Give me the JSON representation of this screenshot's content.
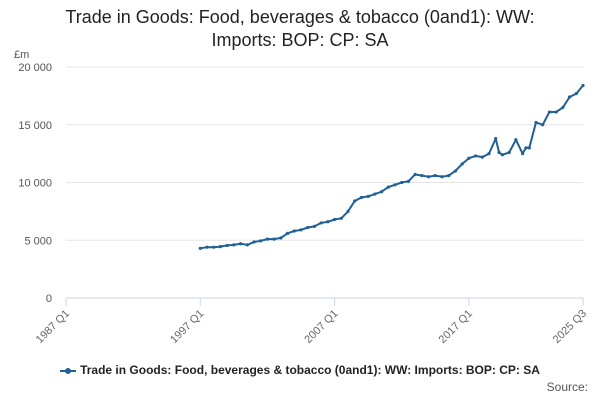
{
  "title_line1": "Trade in Goods: Food, beverages & tobacco (0and1): WW:",
  "title_line2": "Imports: BOP: CP: SA",
  "unit_label": "£m",
  "legend_label": "Trade in Goods: Food, beverages & tobacco (0and1): WW: Imports: BOP: CP: SA",
  "source_label": "Source:",
  "colors": {
    "series": "#206095",
    "grid": "#e6e6e6",
    "axis": "#ccd6eb"
  },
  "chart_data": {
    "type": "line",
    "title": "Trade in Goods: Food, beverages & tobacco (0and1): WW: Imports: BOP: CP: SA",
    "ylabel": "£m",
    "ylim": [
      0,
      20000
    ],
    "y_ticks": [
      0,
      5000,
      10000,
      15000,
      20000
    ],
    "y_tick_labels": [
      "0",
      "5 000",
      "10 000",
      "15 000",
      "20 000"
    ],
    "x_ticks": [
      1987.0,
      1997.0,
      2007.0,
      2017.0,
      2025.5
    ],
    "x_tick_labels": [
      "1987 Q1",
      "1997 Q1",
      "2007 Q1",
      "2017 Q1",
      "2025 Q3"
    ],
    "grid": true,
    "legend": "bottom",
    "series": [
      {
        "name": "Trade in Goods: Food, beverages & tobacco (0and1): WW: Imports: BOP: CP: SA",
        "x": [
          1997.0,
          1997.5,
          1998.0,
          1998.5,
          1999.0,
          1999.5,
          2000.0,
          2000.5,
          2001.0,
          2001.5,
          2002.0,
          2002.5,
          2003.0,
          2003.5,
          2004.0,
          2004.5,
          2005.0,
          2005.5,
          2006.0,
          2006.5,
          2007.0,
          2007.5,
          2008.0,
          2008.5,
          2009.0,
          2009.5,
          2010.0,
          2010.5,
          2011.0,
          2011.5,
          2012.0,
          2012.5,
          2013.0,
          2013.5,
          2014.0,
          2014.5,
          2015.0,
          2015.5,
          2016.0,
          2016.5,
          2017.0,
          2017.5,
          2018.0,
          2018.5,
          2019.0,
          2019.25,
          2019.5,
          2020.0,
          2020.5,
          2021.0,
          2021.25,
          2021.5,
          2022.0,
          2022.5,
          2023.0,
          2023.5,
          2024.0,
          2024.5,
          2025.0,
          2025.5
        ],
        "y": [
          4300,
          4400,
          4400,
          4450,
          4550,
          4600,
          4700,
          4600,
          4850,
          4950,
          5100,
          5100,
          5200,
          5600,
          5800,
          5900,
          6100,
          6200,
          6500,
          6600,
          6800,
          6900,
          7500,
          8400,
          8700,
          8800,
          9000,
          9200,
          9600,
          9800,
          10000,
          10100,
          10700,
          10600,
          10500,
          10600,
          10500,
          10600,
          11000,
          11600,
          12100,
          12300,
          12200,
          12500,
          13800,
          12600,
          12400,
          12600,
          13700,
          12500,
          13000,
          13000,
          15200,
          15000,
          16100,
          16100,
          16500,
          17400,
          17700,
          18400
        ]
      }
    ]
  }
}
